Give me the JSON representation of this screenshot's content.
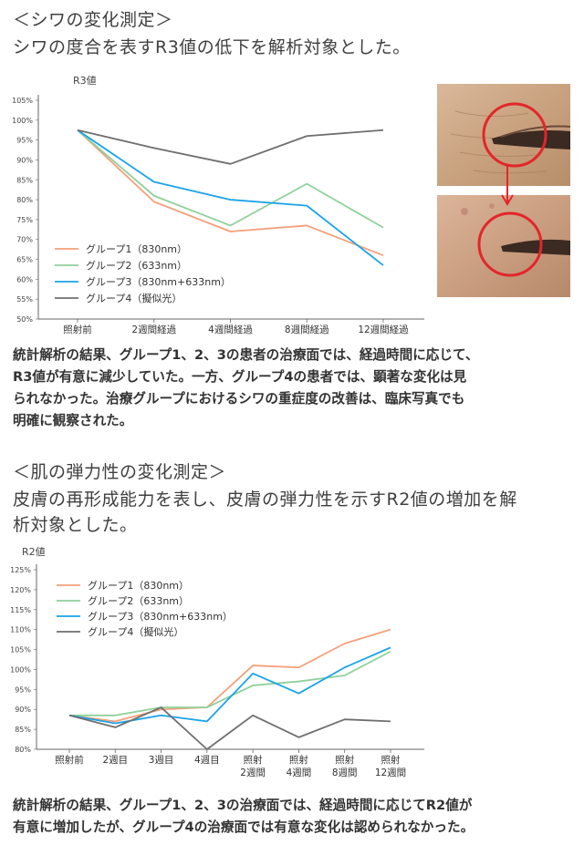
{
  "section1": {
    "heading": "＜シワの変化測定＞",
    "subheading": "シワの度合を表すR3値の低下を解析対象とした。",
    "paragraph_lines": [
      "統計解析の結果、グループ1、2、3の患者の治療面では、経過時間に応じて、",
      "R3値が有意に減少していた。一方、グループ4の患者では、顕著な変化は見",
      "られなかった。治療グループにおけるシワの重症度の改善は、臨床写真でも",
      "明確に観察された。"
    ]
  },
  "section2": {
    "heading": "＜肌の弾力性の変化測定＞",
    "subheading_lines": [
      "皮膚の再形成能力を表し、皮膚の弾力性を示すR2値の増加を解",
      "析対象とした。"
    ],
    "paragraph_lines": [
      "統計解析の結果、グループ1、2、3の治療面では、経過時間に応じてR2値が",
      "有意に増加したが、グループ4の治療面では有意な変化は認められなかった。"
    ]
  },
  "colors": {
    "group1": "#f4a07a",
    "group2": "#8fd19a",
    "group3": "#1aa3e8",
    "group4": "#6f6f6f",
    "circle": "#e3262b"
  },
  "photos": {
    "top_icon": "eye-wrinkle-before-photo",
    "bottom_icon": "eye-wrinkle-after-photo"
  },
  "chart_data": [
    {
      "type": "line",
      "ylabel": "R3値",
      "categories": [
        "照射前",
        "2週間経過",
        "4週間経過",
        "8週間経過",
        "12週間経過"
      ],
      "ylim": [
        50,
        105
      ],
      "yticks": [
        "50%",
        "55%",
        "60%",
        "65%",
        "70%",
        "75%",
        "80%",
        "85%",
        "90%",
        "95%",
        "100%",
        "105%"
      ],
      "legend_position": "bottom-left",
      "series": [
        {
          "name": "グループ1（830nm）",
          "values": [
            97.5,
            79.5,
            72,
            73.5,
            66
          ]
        },
        {
          "name": "グループ2（633nm）",
          "values": [
            97.5,
            81,
            73.5,
            84,
            73
          ]
        },
        {
          "name": "グループ3（830nm+633nm）",
          "values": [
            97.5,
            84.5,
            80,
            78.5,
            63.5
          ]
        },
        {
          "name": "グループ4（擬似光）",
          "values": [
            97.5,
            93,
            89,
            96,
            97.5
          ]
        }
      ]
    },
    {
      "type": "line",
      "ylabel": "R2値",
      "categories": [
        "照射前",
        "2週目",
        "3週目",
        "4週目",
        "照射\n2週間",
        "照射\n4週間",
        "照射\n8週間",
        "照射\n12週間"
      ],
      "ylim": [
        80,
        125
      ],
      "yticks": [
        "80%",
        "85%",
        "90%",
        "95%",
        "100%",
        "105%",
        "110%",
        "115%",
        "120%",
        "125%"
      ],
      "legend_position": "top-left",
      "series": [
        {
          "name": "グループ1（830nm）",
          "values": [
            88.5,
            87,
            90,
            90.5,
            101,
            100.5,
            106.5,
            110
          ]
        },
        {
          "name": "グループ2（633nm）",
          "values": [
            88.5,
            88.5,
            90.5,
            90.5,
            96,
            97,
            98.5,
            104.5
          ]
        },
        {
          "name": "グループ3（830nm+633nm）",
          "values": [
            88.5,
            86.5,
            88.5,
            87,
            99,
            94,
            100.5,
            105.5
          ]
        },
        {
          "name": "グループ4（擬似光）",
          "values": [
            88.5,
            85.5,
            90.5,
            80,
            88.5,
            83,
            87.5,
            87
          ]
        }
      ]
    }
  ]
}
